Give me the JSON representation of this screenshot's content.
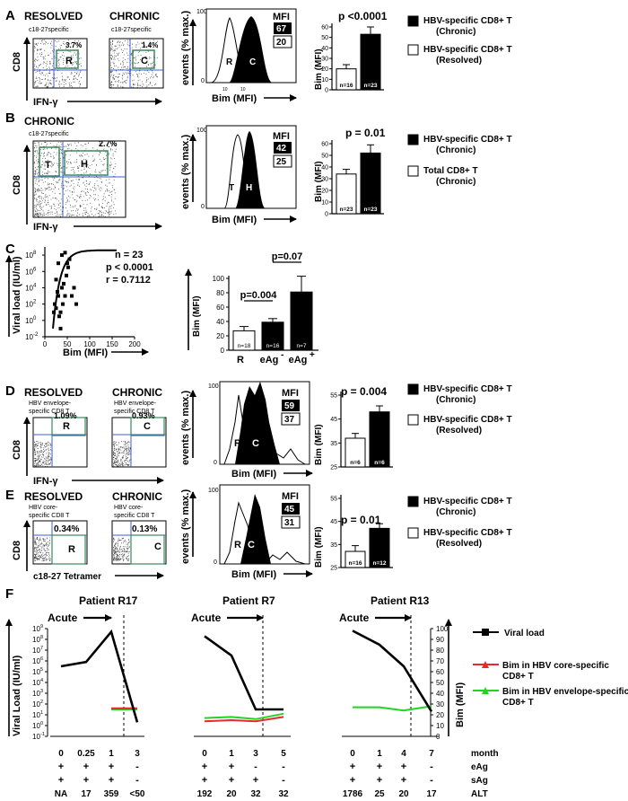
{
  "panels": {
    "A": {
      "letter": "A",
      "flow": [
        {
          "group": "RESOLVED",
          "spec": "c18-27specific",
          "pct": "3.7%",
          "gate": "R"
        },
        {
          "group": "CHRONIC",
          "spec": "c18-27specific",
          "pct": "1.4%",
          "gate": "C"
        }
      ],
      "flow_ylabel": "CD8",
      "flow_xlabel": "IFN-γ",
      "hist": {
        "ylabel": "events (% max.)",
        "xlabel": "Bim (MFI)",
        "ytick_max": "100",
        "ytick_min": "0",
        "xtick1": "10",
        "xtick2": "10",
        "mfi_label": "MFI",
        "mfi_dark": "67",
        "mfi_light": "20",
        "peaks": [
          "R",
          "C"
        ]
      },
      "bar": {
        "p": "p <0.0001",
        "ylabel": "Bim (MFI)",
        "ticks": [
          "0",
          "10",
          "20",
          "30",
          "40",
          "50",
          "60"
        ],
        "chart_data": {
          "type": "bar",
          "categories": [
            "Resolved",
            "Chronic"
          ],
          "values": [
            20,
            53
          ],
          "errors": [
            4,
            7
          ],
          "ylim": [
            0,
            60
          ]
        },
        "n_labels": [
          "n=16",
          "n=23"
        ]
      },
      "legend": [
        {
          "fill": "#000000",
          "text1": "HBV-specific CD8+ T",
          "text2": "(Chronic)"
        },
        {
          "fill": "#ffffff",
          "text1": "HBV-specific CD8+ T",
          "text2": "(Resolved)"
        }
      ]
    },
    "B": {
      "letter": "B",
      "flow": {
        "group": "CHRONIC",
        "spec": "c18-27specific",
        "pct": "2.7%",
        "gates": [
          "T",
          "H"
        ]
      },
      "flow_ylabel": "CD8",
      "flow_xlabel": "IFN-γ",
      "hist": {
        "ylabel": "events (% max.)",
        "xlabel": "Bim (MFI)",
        "ytick_max": "100",
        "ytick_min": "0",
        "mfi_label": "MFI",
        "mfi_dark": "42",
        "mfi_light": "25",
        "peaks": [
          "T",
          "H"
        ]
      },
      "bar": {
        "p": "p = 0.01",
        "ylabel": "Bim (MFI)",
        "ticks": [
          "0",
          "10",
          "20",
          "30",
          "40",
          "50",
          "60"
        ],
        "chart_data": {
          "type": "bar",
          "categories": [
            "Total",
            "HBV-specific"
          ],
          "values": [
            34,
            52
          ],
          "errors": [
            4,
            7
          ],
          "ylim": [
            0,
            60
          ]
        },
        "n_labels": [
          "n=23",
          "n=23"
        ]
      },
      "legend": [
        {
          "fill": "#000000",
          "text1": "HBV-specific CD8+ T",
          "text2": "(Chronic)"
        },
        {
          "fill": "#ffffff",
          "text1": "Total CD8+ T",
          "text2": "(Chronic)"
        }
      ]
    },
    "C": {
      "letter": "C",
      "scatter": {
        "ylabel": "Viral load (IU/ml)",
        "xlabel": "Bim (MFI)",
        "n": "n = 23",
        "p": "p < 0.0001",
        "r": "r = 0.7112",
        "yticks": [
          "10",
          "10",
          "10",
          "10",
          "10",
          "10"
        ],
        "yexp": [
          "8",
          "6",
          "4",
          "2",
          "0",
          "-2"
        ],
        "xticks": [
          "0",
          "50",
          "100",
          "150",
          "200"
        ],
        "chart_data": {
          "type": "scatter",
          "points": [
            [
              20,
              1
            ],
            [
              22,
              2
            ],
            [
              25,
              1.5
            ],
            [
              28,
              3.5
            ],
            [
              30,
              3
            ],
            [
              32,
              0.5
            ],
            [
              35,
              -1
            ],
            [
              38,
              4
            ],
            [
              40,
              2
            ],
            [
              42,
              4.5
            ],
            [
              45,
              3
            ],
            [
              48,
              5.5
            ],
            [
              50,
              7
            ],
            [
              52,
              6.5
            ],
            [
              55,
              7.5
            ],
            [
              38,
              8
            ],
            [
              30,
              7
            ],
            [
              25,
              5
            ],
            [
              60,
              3
            ],
            [
              65,
              4
            ],
            [
              70,
              2
            ],
            [
              35,
              1
            ],
            [
              45,
              8.3
            ]
          ],
          "xlim": [
            0,
            200
          ],
          "ylim": [
            -2,
            9
          ]
        }
      },
      "bar": {
        "ylabel": "Bim (MFI)",
        "ticks": [
          "0",
          "20",
          "40",
          "60",
          "80",
          "100"
        ],
        "p1": "p=0.004",
        "p2": "p=0.07",
        "cats": [
          "R",
          "eAg",
          "eAg"
        ],
        "sups": [
          "",
          "-",
          "+"
        ],
        "chart_data": {
          "type": "bar",
          "categories": [
            "R",
            "eAg-",
            "eAg+"
          ],
          "values": [
            27,
            39,
            81
          ],
          "errors": [
            6,
            5,
            22
          ],
          "ylim": [
            0,
            100
          ]
        },
        "n_labels": [
          "n=18",
          "n=16",
          "n=7"
        ]
      }
    },
    "D": {
      "letter": "D",
      "flow": [
        {
          "group": "RESOLVED",
          "spec1": "HBV envelope-",
          "spec2": "specific CD8 T",
          "pct": "1.09%",
          "gate": "R"
        },
        {
          "group": "CHRONIC",
          "spec1": "HBV envelope-",
          "spec2": "specific CD8 T",
          "pct": "0.93%",
          "gate": "C"
        }
      ],
      "flow_ylabel": "CD8",
      "flow_xlabel": "IFN-γ",
      "hist": {
        "ylabel": "events (% max.)",
        "xlabel": "Bim (MFI)",
        "ytick_max": "100",
        "ytick_min": "0",
        "mfi_label": "MFI",
        "mfi_dark": "59",
        "mfi_light": "37",
        "peaks": [
          "R",
          "C"
        ]
      },
      "bar": {
        "p": "p = 0.004",
        "ylabel": "Bim (MFI)",
        "ticks": [
          "25",
          "35",
          "45",
          "55"
        ],
        "chart_data": {
          "type": "bar",
          "categories": [
            "Resolved",
            "Chronic"
          ],
          "values": [
            37,
            48
          ],
          "errors": [
            2,
            2.5
          ],
          "ylim": [
            25,
            55
          ]
        },
        "n_labels": [
          "n=6",
          "n=6"
        ]
      },
      "legend": [
        {
          "fill": "#000000",
          "text1": "HBV-specific CD8+ T",
          "text2": "(Chronic)"
        },
        {
          "fill": "#ffffff",
          "text1": "HBV-specific CD8+ T",
          "text2": "(Resolved)"
        }
      ]
    },
    "E": {
      "letter": "E",
      "flow": [
        {
          "group": "RESOLVED",
          "spec1": "HBV core-",
          "spec2": "specific CD8 T",
          "pct": "0.34%",
          "gate": "R"
        },
        {
          "group": "CHRONIC",
          "spec1": "HBV core-",
          "spec2": "specific CD8 T",
          "pct": "0.13%",
          "gate": "C"
        }
      ],
      "flow_ylabel": "CD8",
      "flow_xlabel": "c18-27 Tetramer",
      "hist": {
        "ylabel": "events (% max.)",
        "xlabel": "Bim (MFI)",
        "ytick_max": "100",
        "ytick_min": "0",
        "mfi_label": "MFI",
        "mfi_dark": "45",
        "mfi_light": "31",
        "peaks": [
          "R",
          "C"
        ]
      },
      "bar": {
        "p": "p = 0.01",
        "ylabel": "Bim (MFI)",
        "ticks": [
          "25",
          "35",
          "45",
          "55"
        ],
        "chart_data": {
          "type": "bar",
          "categories": [
            "Resolved",
            "Chronic"
          ],
          "values": [
            32,
            42
          ],
          "errors": [
            2.5,
            2
          ],
          "ylim": [
            25,
            55
          ]
        },
        "n_labels": [
          "n=16",
          "n=12"
        ]
      },
      "legend": [
        {
          "fill": "#000000",
          "text1": "HBV-specific CD8+ T",
          "text2": "(Chronic)"
        },
        {
          "fill": "#ffffff",
          "text1": "HBV-specific CD8+ T",
          "text2": "(Resolved)"
        }
      ]
    },
    "F": {
      "letter": "F",
      "ylabel_left": "Viral Load (IU/ml)",
      "ylabel_right": "Bim (MFI)",
      "yticks_left_exp": [
        "9",
        "8",
        "7",
        "6",
        "5",
        "4",
        "3",
        "2",
        "1",
        "0",
        "-1"
      ],
      "yticks_right": [
        "100",
        "90",
        "80",
        "70",
        "60",
        "50",
        "40",
        "30",
        "20",
        "10",
        "0"
      ],
      "acute": "Acute",
      "patients": [
        {
          "title": "Patient R17",
          "months": [
            "0",
            "0.25",
            "1",
            "3"
          ],
          "eAg": [
            "+",
            "+",
            "+",
            "-"
          ],
          "sAg": [
            "+",
            "+",
            "+",
            "-"
          ],
          "ALT": [
            "NA",
            "17",
            "359",
            "<50"
          ],
          "viral": [
            5.5,
            5.9,
            8.7,
            0.3
          ],
          "core": [
            null,
            null,
            26,
            26
          ],
          "env": [
            null,
            null,
            25,
            25
          ]
        },
        {
          "title": "Patient R7",
          "months": [
            "0",
            "1",
            "3",
            "5"
          ],
          "eAg": [
            "+",
            "+",
            "-",
            "-"
          ],
          "sAg": [
            "+",
            "+",
            "+",
            "-"
          ],
          "ALT": [
            "192",
            "20",
            "32",
            "32"
          ],
          "viral": [
            8.3,
            6.5,
            1.5,
            1.5
          ],
          "core": [
            14,
            15,
            14,
            18
          ],
          "env": [
            17,
            18,
            16,
            21
          ]
        },
        {
          "title": "Patient R13",
          "months": [
            "0",
            "1",
            "4",
            "7"
          ],
          "eAg": [
            "+",
            "+",
            "+",
            "-"
          ],
          "sAg": [
            "+",
            "+",
            "+",
            "-"
          ],
          "ALT": [
            "1786",
            "25",
            "20",
            "17"
          ],
          "viral": [
            8.8,
            7.5,
            5.5,
            1.3
          ],
          "core": [
            null,
            null,
            null,
            null
          ],
          "env": [
            27,
            27,
            24,
            28
          ]
        }
      ],
      "row_labels": [
        "month",
        "eAg",
        "sAg",
        "ALT"
      ],
      "legend": [
        {
          "color": "#000000",
          "marker": "square",
          "text1": "Viral load",
          "text2": ""
        },
        {
          "color": "#e8282a",
          "marker": "triangle",
          "text1": "Bim in HBV core-specific",
          "text2": "CD8+ T"
        },
        {
          "color": "#22d422",
          "marker": "triangle",
          "text1": "Bim in HBV envelope-specific",
          "text2": "CD8+ T"
        }
      ]
    }
  }
}
